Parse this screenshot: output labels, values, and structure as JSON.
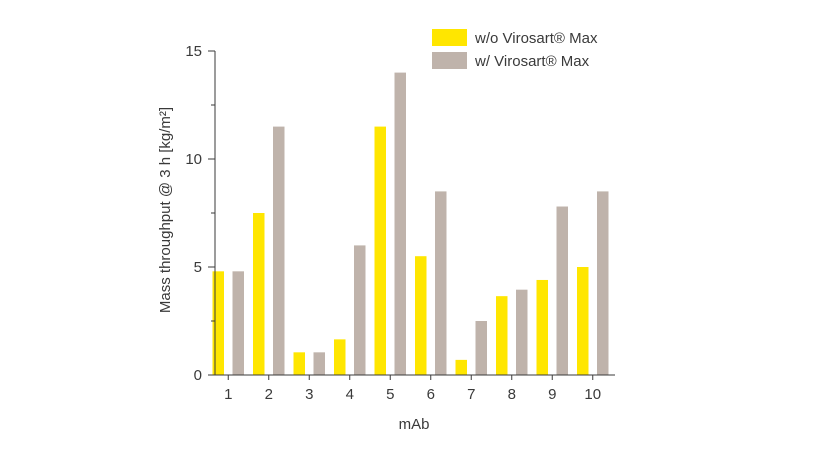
{
  "chart_data": {
    "type": "bar",
    "xlabel": "mAb",
    "ylabel": "Mass throughput @ 3 h [kg/m²]",
    "ylim": [
      0,
      15
    ],
    "yticks": [
      0,
      5,
      10,
      15
    ],
    "categories": [
      "1",
      "2",
      "3",
      "4",
      "5",
      "6",
      "7",
      "8",
      "9",
      "10"
    ],
    "series": [
      {
        "name": "w/o Virosart® Max",
        "color": "#ffe600",
        "values": [
          4.8,
          7.5,
          1.05,
          1.65,
          11.5,
          5.5,
          0.7,
          3.65,
          4.4,
          5.0
        ]
      },
      {
        "name": "w/ Virosart® Max",
        "color": "#bfb3ab",
        "values": [
          4.8,
          11.5,
          1.05,
          6.0,
          14.0,
          8.5,
          2.5,
          3.95,
          7.8,
          8.5
        ]
      }
    ],
    "legend": "top-right",
    "grid": false
  }
}
